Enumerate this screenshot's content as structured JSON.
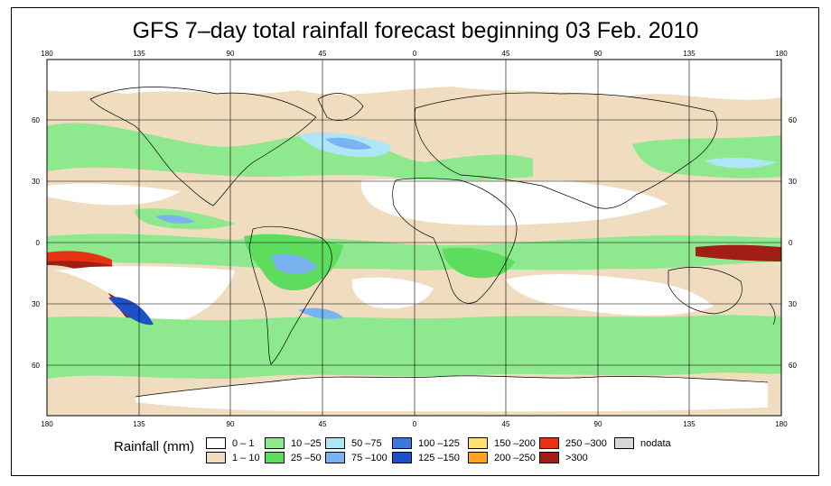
{
  "title": "GFS 7–day total rainfall forecast beginning 03 Feb. 2010",
  "axes": {
    "lon_labels": [
      "180",
      "135",
      "90",
      "45",
      "0",
      "45",
      "90",
      "135",
      "180"
    ],
    "lat_labels": [
      "60",
      "30",
      "0",
      "30",
      "60"
    ]
  },
  "legend": {
    "title": "Rainfall (mm)",
    "items": [
      {
        "label": "0 – 1",
        "color": "#ffffff"
      },
      {
        "label": "1 – 10",
        "color": "#f0dcbe"
      },
      {
        "label": "10 –25",
        "color": "#8ee88e"
      },
      {
        "label": "25 –50",
        "color": "#5ddc5d"
      },
      {
        "label": "50 –75",
        "color": "#aee6f8"
      },
      {
        "label": "75 –100",
        "color": "#7ab4f0"
      },
      {
        "label": "100 –125",
        "color": "#3c78dc"
      },
      {
        "label": "125 –150",
        "color": "#1e50c8"
      },
      {
        "label": "150 –200",
        "color": "#ffe070"
      },
      {
        "label": "200 –250",
        "color": "#ffa21e"
      },
      {
        "label": "250 –300",
        "color": "#e83214"
      },
      {
        "label": ">300",
        "color": "#a01e14"
      },
      {
        "label": "nodata",
        "color": "#d8d8d8"
      }
    ]
  }
}
